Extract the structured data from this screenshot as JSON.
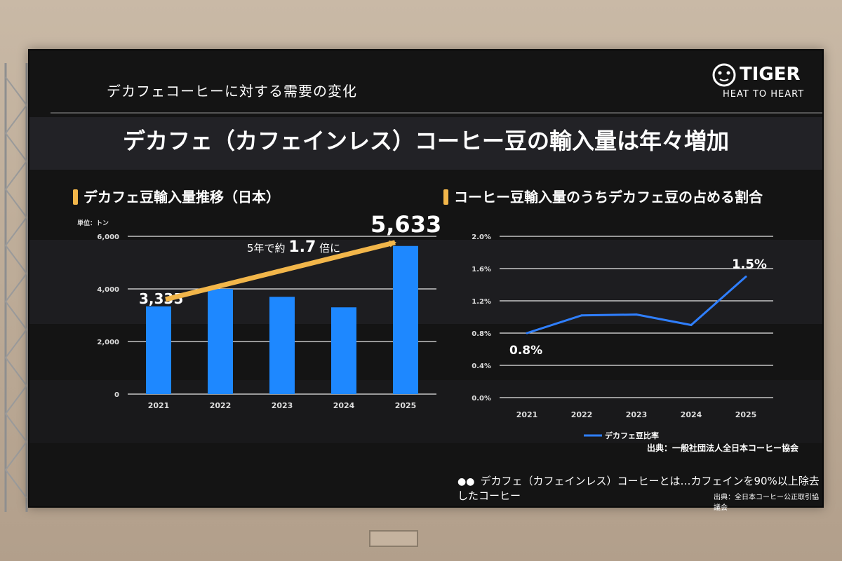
{
  "header": {
    "section_label": "デカフェコーヒーに対する需要の変化",
    "main_title": "デカフェ（カフェインレス）コーヒー豆の輸入量は年々増加"
  },
  "logo": {
    "name": "TIGER",
    "tagline": "HEAT TO HEART"
  },
  "colors": {
    "bar": "#1e88ff",
    "line": "#2f7fff",
    "accent": "#f2b64a",
    "background": "#141414"
  },
  "chart_data": [
    {
      "type": "bar",
      "title": "デカフェ豆輸入量推移（日本）",
      "unit_label": "単位：トン",
      "categories": [
        "2021",
        "2022",
        "2023",
        "2024",
        "2025"
      ],
      "values": [
        3335,
        4000,
        3700,
        3300,
        5633
      ],
      "ylim": [
        0,
        6000
      ],
      "yticks": [
        "0",
        "2,000",
        "4,000",
        "6,000"
      ],
      "data_labels": {
        "first": "3,335",
        "last": "5,633"
      },
      "annotation": {
        "prefix": "5年で約",
        "value": "1.7",
        "suffix": "倍に"
      },
      "grid": true
    },
    {
      "type": "line",
      "title": "コーヒー豆輸入量のうちデカフェ豆の占める割合",
      "categories": [
        "2021",
        "2022",
        "2023",
        "2024",
        "2025"
      ],
      "series": [
        {
          "name": "デカフェ豆比率",
          "values": [
            0.8,
            1.02,
            1.03,
            0.9,
            1.5
          ]
        }
      ],
      "ylim": [
        0,
        2.0
      ],
      "yticks": [
        "0.0%",
        "0.4%",
        "0.8%",
        "1.2%",
        "1.6%",
        "2.0%"
      ],
      "data_labels": {
        "first": "0.8%",
        "last": "1.5%"
      },
      "legend": "bottom",
      "grid": true
    }
  ],
  "footer": {
    "source1": "出典：一般社団法人全日本コーヒー協会",
    "note": "デカフェ（カフェインレス）コーヒーとは…カフェインを90%以上除去したコーヒー",
    "source2": "出典：全日本コーヒー公正取引協議会"
  }
}
